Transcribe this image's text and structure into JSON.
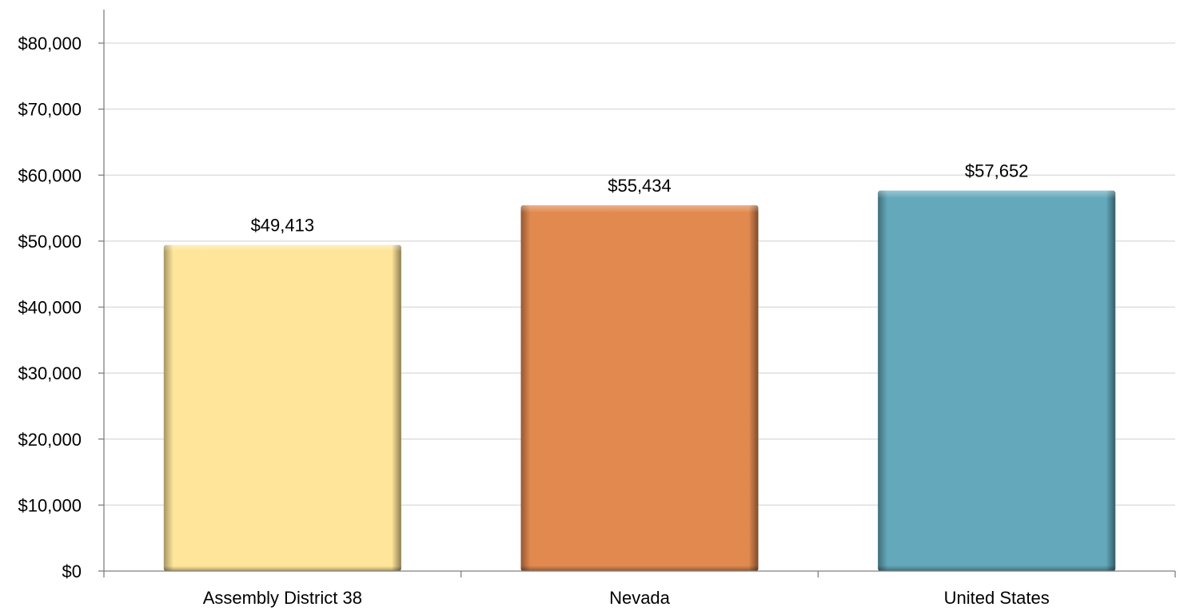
{
  "chart_data": {
    "type": "bar",
    "title": "",
    "xlabel": "",
    "ylabel": "",
    "categories": [
      "Assembly District 38",
      "Nevada",
      "United States"
    ],
    "values": [
      49413,
      55434,
      57652
    ],
    "value_labels": [
      "$49,413",
      "$55,434",
      "$57,652"
    ],
    "bar_colors": [
      "#FEE599",
      "#E1894F",
      "#63A9BB"
    ],
    "ylim": [
      0,
      80000
    ],
    "y_ticks": [
      0,
      10000,
      20000,
      30000,
      40000,
      50000,
      60000,
      70000,
      80000
    ],
    "y_tick_labels": [
      "$0",
      "$10,000",
      "$20,000",
      "$30,000",
      "$40,000",
      "$50,000",
      "$60,000",
      "$70,000",
      "$80,000"
    ],
    "grid": true,
    "legend": "none",
    "colors": {
      "grid": "#D9D9D9",
      "axis": "#808080"
    }
  }
}
